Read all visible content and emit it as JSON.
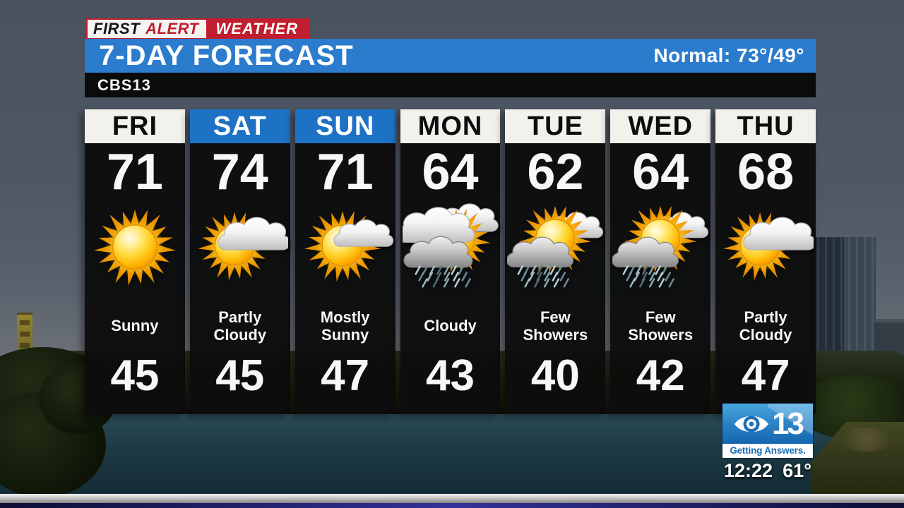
{
  "brand": {
    "first": "FIRST",
    "alert": "ALERT",
    "weather": "WEATHER"
  },
  "banner": {
    "title": "7-DAY FORECAST",
    "normal_label": "Normal: 73°/49°"
  },
  "station": {
    "name": "CBS13"
  },
  "forecast": {
    "days": [
      {
        "day": "FRI",
        "accent": false,
        "high": "71",
        "icon": "sunny",
        "condition": "Sunny",
        "low": "45"
      },
      {
        "day": "SAT",
        "accent": true,
        "high": "74",
        "icon": "partly-cloudy",
        "condition": "Partly Cloudy",
        "low": "45"
      },
      {
        "day": "SUN",
        "accent": true,
        "high": "71",
        "icon": "mostly-sunny",
        "condition": "Mostly Sunny",
        "low": "47"
      },
      {
        "day": "MON",
        "accent": false,
        "high": "64",
        "icon": "cloudy-showers",
        "condition": "Cloudy",
        "low": "43"
      },
      {
        "day": "TUE",
        "accent": false,
        "high": "62",
        "icon": "few-showers",
        "condition": "Few Showers",
        "low": "40"
      },
      {
        "day": "WED",
        "accent": false,
        "high": "64",
        "icon": "few-showers",
        "condition": "Few Showers",
        "low": "42"
      },
      {
        "day": "THU",
        "accent": false,
        "high": "68",
        "icon": "partly-cloudy",
        "condition": "Partly Cloudy",
        "low": "47"
      }
    ]
  },
  "bug": {
    "station_number": "13",
    "tagline": "Getting Answers.",
    "time": "12:22",
    "temp": "61°"
  },
  "icons": {
    "legend": [
      "sunny-icon",
      "partly-cloudy-icon",
      "mostly-sunny-icon",
      "cloudy-showers-icon",
      "few-showers-icon"
    ]
  },
  "colors": {
    "banner_blue": "#2b7ccd",
    "header_blue": "#1d72c6",
    "alert_red": "#c01d2e",
    "column_bg": "#0d0d0d",
    "bug_blue": "#2e86c8",
    "sun_yellow": "#ffd633",
    "sky_gray": "#4f5864",
    "water_teal": "#1d3a45"
  }
}
